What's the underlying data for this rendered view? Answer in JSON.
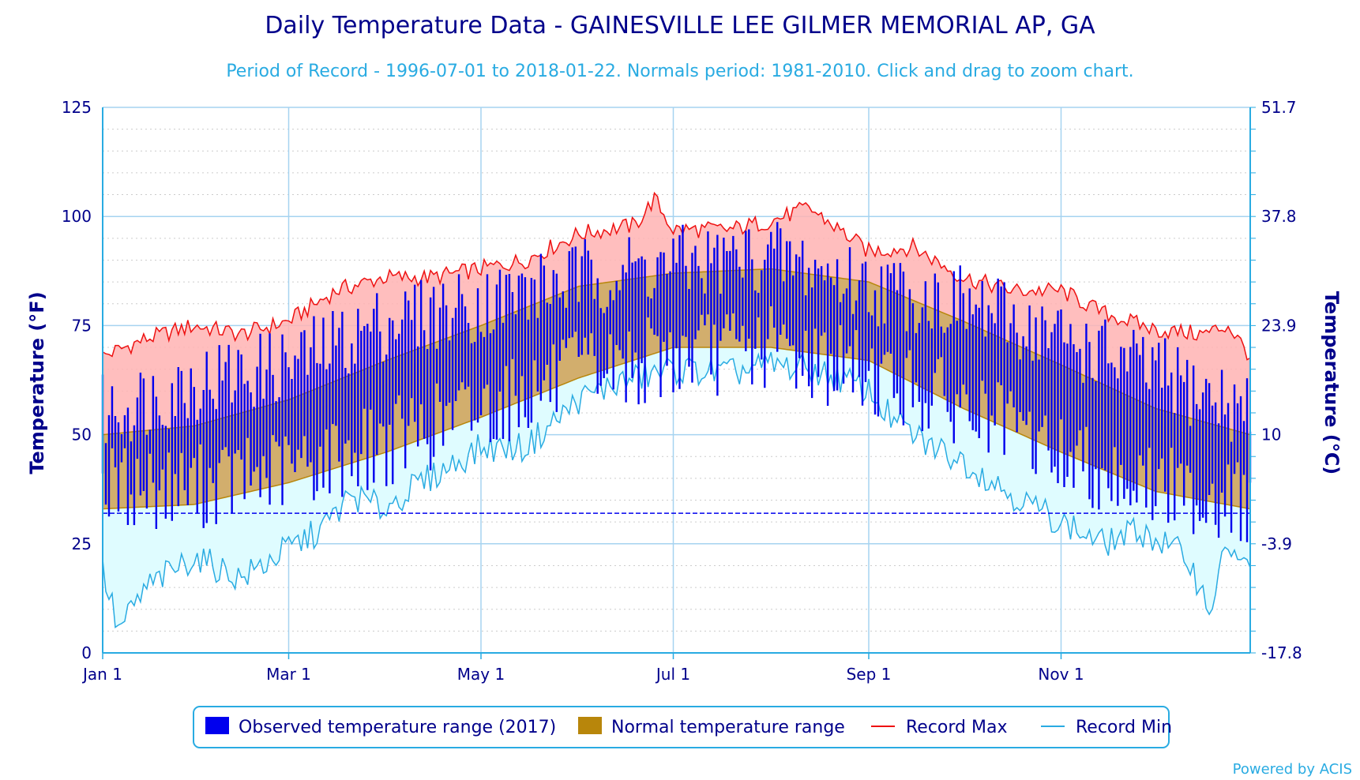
{
  "chart_data": {
    "type": "area",
    "title": "Daily Temperature Data - GAINESVILLE LEE GILMER MEMORIAL AP, GA",
    "subtitle": "Period of Record - 1996-07-01 to 2018-01-22. Normals period: 1981-2010. Click and drag to zoom chart.",
    "ylabel": "Temperature (°F)",
    "ylabel_right": "Temperature (°C)",
    "ylim": [
      0,
      125
    ],
    "y_ticks": [
      0,
      25,
      50,
      75,
      100,
      125
    ],
    "y_ticks_right": [
      "-17.8",
      "-3.9",
      "10",
      "23.9",
      "37.8",
      "51.7"
    ],
    "xlim_day_of_year": [
      1,
      365
    ],
    "x_ticks": [
      {
        "label": "Jan 1",
        "day": 1
      },
      {
        "label": "Mar 1",
        "day": 60
      },
      {
        "label": "May 1",
        "day": 121
      },
      {
        "label": "Jul 1",
        "day": 182
      },
      {
        "label": "Sep 1",
        "day": 244
      },
      {
        "label": "Nov 1",
        "day": 305
      }
    ],
    "freezing_line": 32,
    "grid": true,
    "legend_position": "bottom",
    "legend": [
      {
        "name": "Observed temperature range (2017)",
        "color": "#0000ee",
        "kind": "box"
      },
      {
        "name": "Normal temperature range",
        "color": "#b8860b",
        "kind": "box"
      },
      {
        "name": "Record Max",
        "color": "#ee1111",
        "kind": "line"
      },
      {
        "name": "Record Min",
        "color": "#29abe2",
        "kind": "line"
      }
    ],
    "normal_max_points": [
      [
        1,
        50
      ],
      [
        30,
        52
      ],
      [
        60,
        58
      ],
      [
        91,
        67
      ],
      [
        121,
        75
      ],
      [
        152,
        84
      ],
      [
        182,
        87
      ],
      [
        213,
        88
      ],
      [
        244,
        85
      ],
      [
        274,
        76
      ],
      [
        305,
        66
      ],
      [
        335,
        56
      ],
      [
        365,
        50
      ]
    ],
    "normal_min_points": [
      [
        1,
        33
      ],
      [
        30,
        34
      ],
      [
        60,
        39
      ],
      [
        91,
        46
      ],
      [
        121,
        54
      ],
      [
        152,
        63
      ],
      [
        182,
        70
      ],
      [
        213,
        70
      ],
      [
        244,
        67
      ],
      [
        274,
        56
      ],
      [
        305,
        46
      ],
      [
        335,
        37
      ],
      [
        365,
        33
      ]
    ],
    "record_max_points": [
      [
        1,
        68
      ],
      [
        15,
        72
      ],
      [
        30,
        75
      ],
      [
        45,
        73
      ],
      [
        60,
        76
      ],
      [
        75,
        83
      ],
      [
        90,
        86
      ],
      [
        105,
        86
      ],
      [
        121,
        88
      ],
      [
        135,
        90
      ],
      [
        152,
        96
      ],
      [
        170,
        98
      ],
      [
        176,
        104
      ],
      [
        182,
        97
      ],
      [
        200,
        97
      ],
      [
        213,
        99
      ],
      [
        225,
        102
      ],
      [
        244,
        92
      ],
      [
        258,
        93
      ],
      [
        274,
        86
      ],
      [
        290,
        83
      ],
      [
        305,
        83
      ],
      [
        318,
        78
      ],
      [
        335,
        74
      ],
      [
        350,
        73
      ],
      [
        358,
        75
      ],
      [
        365,
        68
      ]
    ],
    "record_min_points": [
      [
        1,
        19
      ],
      [
        6,
        5
      ],
      [
        15,
        15
      ],
      [
        30,
        22
      ],
      [
        45,
        17
      ],
      [
        60,
        24
      ],
      [
        70,
        28
      ],
      [
        80,
        36
      ],
      [
        90,
        33
      ],
      [
        100,
        38
      ],
      [
        121,
        47
      ],
      [
        135,
        47
      ],
      [
        152,
        58
      ],
      [
        165,
        62
      ],
      [
        182,
        65
      ],
      [
        200,
        64
      ],
      [
        213,
        66
      ],
      [
        225,
        65
      ],
      [
        238,
        62
      ],
      [
        244,
        60
      ],
      [
        252,
        53
      ],
      [
        262,
        48
      ],
      [
        274,
        44
      ],
      [
        290,
        36
      ],
      [
        305,
        30
      ],
      [
        318,
        25
      ],
      [
        330,
        28
      ],
      [
        345,
        22
      ],
      [
        352,
        10
      ],
      [
        358,
        25
      ],
      [
        365,
        18
      ]
    ],
    "observed_2017_days": 365,
    "observed_2017_approx_profile": {
      "high_points": [
        [
          1,
          55
        ],
        [
          30,
          62
        ],
        [
          60,
          66
        ],
        [
          91,
          76
        ],
        [
          121,
          80
        ],
        [
          152,
          86
        ],
        [
          182,
          89
        ],
        [
          213,
          91
        ],
        [
          244,
          84
        ],
        [
          274,
          80
        ],
        [
          305,
          72
        ],
        [
          335,
          64
        ],
        [
          365,
          55
        ]
      ],
      "low_points": [
        [
          1,
          38
        ],
        [
          30,
          38
        ],
        [
          60,
          42
        ],
        [
          91,
          48
        ],
        [
          121,
          56
        ],
        [
          152,
          64
        ],
        [
          182,
          68
        ],
        [
          213,
          70
        ],
        [
          244,
          64
        ],
        [
          274,
          56
        ],
        [
          305,
          45
        ],
        [
          335,
          38
        ],
        [
          365,
          34
        ]
      ]
    },
    "credit": "Powered by ACIS"
  }
}
